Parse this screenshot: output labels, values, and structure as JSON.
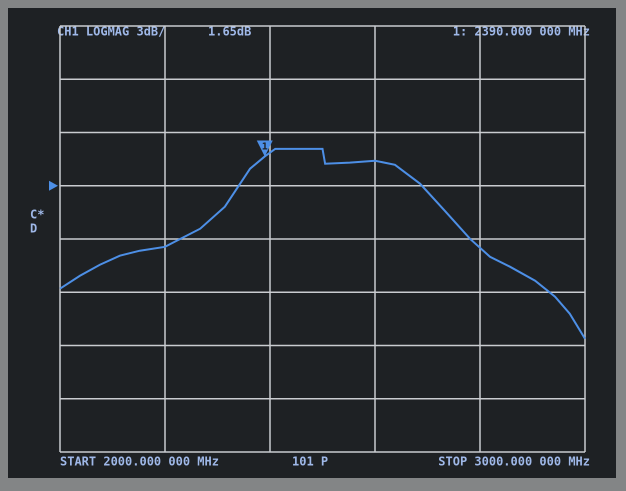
{
  "chart_data": {
    "type": "line",
    "channel_label": "CH1 LOGMAG 3dB/",
    "start_label": "START 2000.000 000 MHz",
    "points_label": "101 P",
    "stop_label": "STOP 3000.000 000 MHz",
    "side_labels": [
      "C*",
      "D"
    ],
    "x": [
      2000,
      2038,
      2076,
      2114,
      2152,
      2200,
      2219,
      2267,
      2314,
      2362,
      2390,
      2410,
      2457,
      2500,
      2505,
      2552,
      2600,
      2638,
      2686,
      2733,
      2781,
      2819,
      2857,
      2905,
      2943,
      2971,
      3000
    ],
    "series": [
      {
        "color": "#4d8fe6",
        "values": [
          -5.8,
          -5.07,
          -4.45,
          -3.94,
          -3.66,
          -3.44,
          -3.15,
          -2.42,
          -1.18,
          0.96,
          1.65,
          2.08,
          2.08,
          2.08,
          1.24,
          1.3,
          1.41,
          1.18,
          0.11,
          -1.41,
          -2.99,
          -4.0,
          -4.56,
          -5.35,
          -6.25,
          -7.21,
          -8.62
        ]
      }
    ],
    "marker": {
      "label": "1",
      "x": 2390,
      "value": 1.65,
      "value_label": "1.65dB",
      "readout": "1: 2390.000 000 MHz"
    },
    "reference": 0,
    "xlim": [
      2000,
      3000
    ],
    "xticks": [
      2000,
      2200,
      2400,
      2600,
      2800,
      3000
    ],
    "ylim": [
      -15,
      9
    ],
    "yticks": [
      -15,
      -12,
      -9,
      -6,
      -3,
      0,
      3,
      6,
      9
    ],
    "grid": true
  }
}
